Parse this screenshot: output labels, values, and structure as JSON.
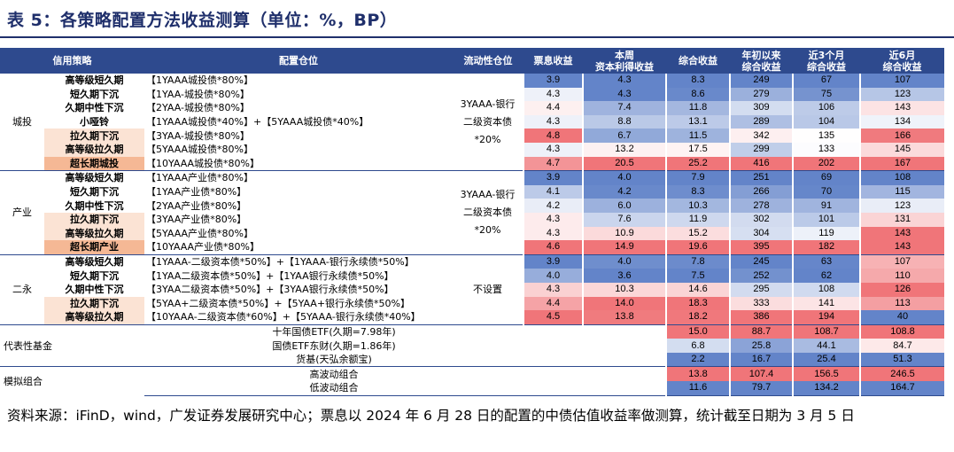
{
  "title": "表 5：各策略配置方法收益测算（单位：%，BP）",
  "headers": {
    "strategy": "信用策略",
    "position": "配置仓位",
    "liquidity": "流动性仓位",
    "coupon": "票息收益",
    "capital_gain": "本周\n资本利得收益",
    "total": "综合收益",
    "ytd": "年初以来\n综合收益",
    "three_month": "近3个月\n综合收益",
    "six_month": "近6月\n综合收益"
  },
  "groups": [
    {
      "name": "城投",
      "liquidity": "3YAAA-银行\n二级资本债\n*20%",
      "rows": [
        {
          "strategy": "高等级短久期",
          "strategy_bg": "#ffffff",
          "position": "【1YAAA城投债*80%】",
          "coupon": "3.9",
          "capital": "4.3",
          "total": "8.3",
          "ytd": "249",
          "m3": "67",
          "m6": "107"
        },
        {
          "strategy": "短久期下沉",
          "strategy_bg": "#ffffff",
          "position": "【1YAA-城投债*80%】",
          "coupon": "4.3",
          "capital": "4.3",
          "total": "8.6",
          "ytd": "279",
          "m3": "75",
          "m6": "123"
        },
        {
          "strategy": "久期中性下沉",
          "strategy_bg": "#ffffff",
          "position": "【2YAA-城投债*80%】",
          "coupon": "4.4",
          "capital": "7.4",
          "total": "11.8",
          "ytd": "309",
          "m3": "106",
          "m6": "143"
        },
        {
          "strategy": "小哑铃",
          "strategy_bg": "#ffffff",
          "position": "【1YAAA城投债*40%】+【5YAAA城投债*40%】",
          "coupon": "4.3",
          "capital": "8.8",
          "total": "13.1",
          "ytd": "289",
          "m3": "104",
          "m6": "134"
        },
        {
          "strategy": "拉久期下沉",
          "strategy_bg": "#fbe3d4",
          "position": "【3YAA-城投债*80%】",
          "coupon": "4.8",
          "capital": "6.7",
          "total": "11.5",
          "ytd": "342",
          "m3": "135",
          "m6": "166"
        },
        {
          "strategy": "高等级拉久期",
          "strategy_bg": "#fbe3d4",
          "position": "【5YAAA城投债*80%】",
          "coupon": "4.3",
          "capital": "13.2",
          "total": "17.5",
          "ytd": "299",
          "m3": "133",
          "m6": "145"
        },
        {
          "strategy": "超长期城投",
          "strategy_bg": "#f5b895",
          "position": "【10YAAA城投债*80%】",
          "coupon": "4.7",
          "capital": "20.5",
          "total": "25.2",
          "ytd": "416",
          "m3": "202",
          "m6": "167"
        }
      ]
    },
    {
      "name": "产业",
      "liquidity": "3YAAA-银行\n二级资本债\n*20%",
      "rows": [
        {
          "strategy": "高等级短久期",
          "strategy_bg": "#ffffff",
          "position": "【1YAAA产业债*80%】",
          "coupon": "3.9",
          "capital": "4.0",
          "total": "7.9",
          "ytd": "251",
          "m3": "69",
          "m6": "108"
        },
        {
          "strategy": "短久期下沉",
          "strategy_bg": "#ffffff",
          "position": "【1YAA产业债*80%】",
          "coupon": "4.1",
          "capital": "4.2",
          "total": "8.3",
          "ytd": "266",
          "m3": "70",
          "m6": "115"
        },
        {
          "strategy": "久期中性下沉",
          "strategy_bg": "#ffffff",
          "position": "【2YAA产业债*80%】",
          "coupon": "4.2",
          "capital": "6.0",
          "total": "10.3",
          "ytd": "278",
          "m3": "91",
          "m6": "123"
        },
        {
          "strategy": "拉久期下沉",
          "strategy_bg": "#fbe3d4",
          "position": "【3YAA产业债*80%】",
          "coupon": "4.3",
          "capital": "7.6",
          "total": "11.9",
          "ytd": "302",
          "m3": "101",
          "m6": "131"
        },
        {
          "strategy": "高等级拉久期",
          "strategy_bg": "#fbe3d4",
          "position": "【5YAAA产业债*80%】",
          "coupon": "4.3",
          "capital": "10.9",
          "total": "15.2",
          "ytd": "304",
          "m3": "119",
          "m6": "143"
        },
        {
          "strategy": "超长期产业",
          "strategy_bg": "#f5b895",
          "position": "【10YAAA产业债*80%】",
          "coupon": "4.6",
          "capital": "14.9",
          "total": "19.6",
          "ytd": "395",
          "m3": "182",
          "m6": "143"
        }
      ]
    },
    {
      "name": "二永",
      "liquidity": "不设置",
      "rows": [
        {
          "strategy": "高等级短久期",
          "strategy_bg": "#ffffff",
          "position": "【1YAAA-二级资本债*50%】+【1YAAA-银行永续债*50%】",
          "coupon": "3.9",
          "capital": "4.0",
          "total": "7.8",
          "ytd": "245",
          "m3": "63",
          "m6": "107"
        },
        {
          "strategy": "短久期下沉",
          "strategy_bg": "#ffffff",
          "position": "【1YAA二级资本债*50%】+【1YAA银行永续债*50%】",
          "coupon": "4.0",
          "capital": "3.6",
          "total": "7.5",
          "ytd": "252",
          "m3": "62",
          "m6": "110"
        },
        {
          "strategy": "久期中性下沉",
          "strategy_bg": "#ffffff",
          "position": "【3YAA二级资本债*50%】+【3YAA银行永续债*50%】",
          "coupon": "4.3",
          "capital": "10.3",
          "total": "14.6",
          "ytd": "295",
          "m3": "108",
          "m6": "126"
        },
        {
          "strategy": "拉久期下沉",
          "strategy_bg": "#fbe3d4",
          "position": "【5YAA+二级资本债*50%】+【5YAA+银行永续债*50%】",
          "coupon": "4.4",
          "capital": "14.0",
          "total": "18.3",
          "ytd": "333",
          "m3": "141",
          "m6": "113"
        },
        {
          "strategy": "高等级拉久期",
          "strategy_bg": "#fbe3d4",
          "position": "【10YAAA-二级资本债*60%】+【5YAAA-银行永续债*40%】",
          "coupon": "4.5",
          "capital": "13.8",
          "total": "18.2",
          "ytd": "386",
          "m3": "194",
          "m6": "40"
        }
      ]
    }
  ],
  "funds": {
    "name": "代表性基金",
    "rows": [
      {
        "label": "十年国债ETF(久期=7.98年)",
        "total": "15.0",
        "ytd": "88.7",
        "m3": "108.7",
        "m6": "108.8"
      },
      {
        "label": "国债ETF东财(久期=1.86年)",
        "total": "6.8",
        "ytd": "25.8",
        "m3": "44.1",
        "m6": "84.7"
      },
      {
        "label": "货基(天弘余额宝)",
        "total": "2.2",
        "ytd": "16.7",
        "m3": "25.4",
        "m6": "51.3"
      }
    ]
  },
  "sim": {
    "name": "模拟组合",
    "rows": [
      {
        "label": "高波动组合",
        "total": "13.8",
        "ytd": "107.4",
        "m3": "156.5",
        "m6": "246.5"
      },
      {
        "label": "低波动组合",
        "total": "11.6",
        "ytd": "79.7",
        "m3": "134.2",
        "m6": "164.7"
      }
    ]
  },
  "footnote": "资料来源：iFinD，wind，广发证券发展研究中心；票息以 2024 年 6 月 28 日的配置的中债估值收益率做测算，统计截至日期为 3 月 5 日",
  "colors": {
    "header": "#2e4a8e",
    "title": "#1f2f6b",
    "blue_dark": "#5b7ec6",
    "red_dark": "#ef6e72",
    "neutral": "#ffffff"
  }
}
